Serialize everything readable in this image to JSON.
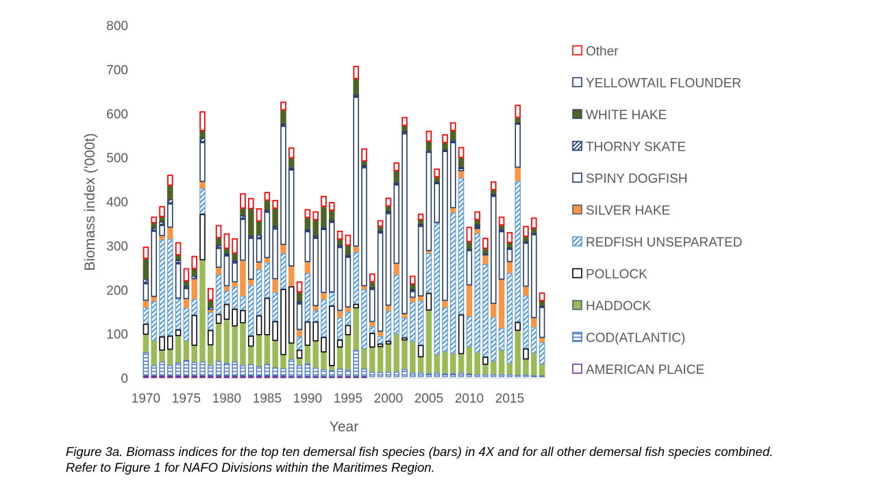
{
  "caption": "Figure 3a. Biomass indices for the top ten demersal fish species (bars) in 4X and for all other demersal fish species combined.  Refer to Figure 1 for NAFO Divisions within the Maritimes Region.",
  "chart_data": {
    "type": "bar",
    "stacked": true,
    "title": "",
    "xlabel": "Year",
    "ylabel": "Biomass index ('000t)",
    "ylim": [
      0,
      800
    ],
    "yticks": [
      0,
      100,
      200,
      300,
      400,
      500,
      600,
      700,
      800
    ],
    "xtick_labels": [
      "1970",
      "1975",
      "1980",
      "1985",
      "1990",
      "1995",
      "2000",
      "2005",
      "2010",
      "2015"
    ],
    "grid": false,
    "legend_position": "right",
    "legend_order": [
      "Other",
      "YELLOWTAIL FLOUNDER",
      "WHITE HAKE",
      "THORNY SKATE",
      "SPINY DOGFISH",
      "SILVER HAKE",
      "REDFISH UNSEPARATED",
      "POLLOCK",
      "HADDOCK",
      "COD(ATLANTIC)",
      "AMERICAN PLAICE"
    ],
    "categories": [
      "1970",
      "1971",
      "1972",
      "1973",
      "1974",
      "1975",
      "1976",
      "1977",
      "1978",
      "1979",
      "1980",
      "1981",
      "1982",
      "1983",
      "1984",
      "1985",
      "1986",
      "1987",
      "1988",
      "1989",
      "1990",
      "1991",
      "1992",
      "1993",
      "1994",
      "1995",
      "1996",
      "1997",
      "1998",
      "1999",
      "2000",
      "2001",
      "2002",
      "2003",
      "2004",
      "2005",
      "2006",
      "2007",
      "2008",
      "2009",
      "2010",
      "2011",
      "2012",
      "2013",
      "2014",
      "2015",
      "2016",
      "2017",
      "2018",
      "2019"
    ],
    "series": [
      {
        "name": "AMERICAN PLAICE",
        "color": "#7030a0",
        "pattern": "outline",
        "values": [
          5,
          5,
          5,
          5,
          5,
          5,
          5,
          5,
          4,
          4,
          4,
          4,
          4,
          4,
          4,
          4,
          4,
          4,
          3,
          3,
          3,
          3,
          3,
          3,
          3,
          3,
          3,
          3,
          2,
          2,
          2,
          2,
          2,
          2,
          2,
          2,
          2,
          2,
          2,
          2,
          2,
          2,
          2,
          2,
          2,
          2,
          2,
          2,
          2,
          2
        ]
      },
      {
        "name": "COD(ATLANTIC)",
        "color": "#4472c4",
        "pattern": "hlines",
        "values": [
          53,
          24,
          32,
          24,
          30,
          36,
          31,
          32,
          25,
          34,
          30,
          33,
          25,
          27,
          23,
          28,
          20,
          18,
          40,
          26,
          30,
          20,
          17,
          14,
          18,
          16,
          60,
          18,
          12,
          11,
          12,
          12,
          18,
          10,
          10,
          8,
          10,
          8,
          8,
          10,
          8,
          6,
          6,
          6,
          6,
          6,
          5,
          5,
          4,
          4
        ]
      },
      {
        "name": "HADDOCK",
        "color": "#9bbb59",
        "pattern": "solid",
        "values": [
          40,
          55,
          25,
          35,
          60,
          43,
          37,
          230,
          45,
          85,
          98,
          80,
          95,
          40,
          70,
          65,
          60,
          30,
          35,
          15,
          40,
          60,
          38,
          10,
          48,
          78,
          95,
          45,
          55,
          57,
          62,
          85,
          65,
          70,
          35,
          143,
          40,
          50,
          45,
          42,
          60,
          50,
          22,
          30,
          55,
          25,
          100,
          35,
          50,
          25
        ]
      },
      {
        "name": "POLLOCK",
        "color": "#000000",
        "pattern": "outline",
        "values": [
          25,
          0,
          32,
          32,
          15,
          0,
          70,
          105,
          35,
          22,
          36,
          40,
          30,
          25,
          45,
          85,
          45,
          150,
          130,
          20,
          55,
          45,
          35,
          137,
          18,
          23,
          10,
          0,
          33,
          8,
          8,
          0,
          7,
          0,
          28,
          40,
          0,
          0,
          0,
          90,
          0,
          0,
          18,
          0,
          0,
          0,
          20,
          25,
          0,
          0
        ]
      },
      {
        "name": "REDFISH UNSEPARATED",
        "color": "#5b9bd5",
        "pattern": "diag",
        "values": [
          37,
          90,
          220,
          220,
          70,
          75,
          36,
          58,
          40,
          90,
          30,
          50,
          32,
          115,
          105,
          80,
          65,
          80,
          0,
          30,
          110,
          25,
          85,
          30,
          50,
          30,
          118,
          135,
          15,
          17,
          68,
          135,
          45,
          90,
          100,
          90,
          300,
          100,
          320,
          310,
          70,
          270,
          210,
          100,
          50,
          205,
          320,
          120,
          60,
          50
        ]
      },
      {
        "name": "SILVER HAKE",
        "color": "#f79646",
        "pattern": "solid",
        "values": [
          15,
          10,
          8,
          25,
          0,
          20,
          45,
          15,
          5,
          15,
          10,
          10,
          80,
          12,
          15,
          10,
          30,
          20,
          45,
          15,
          25,
          10,
          15,
          0,
          15,
          10,
          12,
          7,
          10,
          10,
          12,
          25,
          8,
          10,
          10,
          5,
          0,
          15,
          10,
          15,
          70,
          10,
          20,
          30,
          110,
          25,
          30,
          20,
          20,
          10
        ]
      },
      {
        "name": "SPINY DOGFISH",
        "color": "#1f3864",
        "pattern": "outline",
        "values": [
          40,
          150,
          25,
          55,
          80,
          25,
          0,
          90,
          0,
          45,
          70,
          45,
          95,
          95,
          55,
          105,
          115,
          270,
          220,
          60,
          70,
          155,
          145,
          160,
          145,
          115,
          340,
          270,
          75,
          225,
          210,
          180,
          410,
          15,
          160,
          225,
          90,
          340,
          150,
          7,
          80,
          5,
          0,
          245,
          110,
          30,
          100,
          100,
          190,
          70
        ]
      },
      {
        "name": "THORNY SKATE",
        "color": "#2e4f8f",
        "pattern": "diag",
        "values": [
          10,
          7,
          8,
          10,
          8,
          5,
          8,
          10,
          7,
          7,
          5,
          5,
          8,
          5,
          8,
          5,
          5,
          5,
          5,
          5,
          5,
          5,
          5,
          5,
          5,
          5,
          5,
          5,
          5,
          5,
          5,
          5,
          5,
          5,
          5,
          3,
          3,
          3,
          5,
          3,
          3,
          5,
          5,
          5,
          5,
          3,
          3,
          3,
          3,
          3
        ]
      },
      {
        "name": "WHITE HAKE",
        "color": "#4f6228",
        "pattern": "solid",
        "values": [
          45,
          10,
          10,
          30,
          10,
          10,
          15,
          15,
          15,
          15,
          10,
          15,
          15,
          60,
          30,
          20,
          40,
          30,
          20,
          20,
          25,
          35,
          45,
          20,
          12,
          20,
          35,
          8,
          10,
          8,
          10,
          25,
          12,
          10,
          8,
          20,
          10,
          15,
          20,
          20,
          15,
          10,
          10,
          8,
          8,
          10,
          10,
          10,
          10,
          10
        ]
      },
      {
        "name": "YELLOWTAIL FLOUNDER",
        "color": "#203864",
        "pattern": "outline",
        "values": [
          0,
          0,
          0,
          0,
          0,
          0,
          0,
          0,
          0,
          0,
          0,
          0,
          0,
          0,
          0,
          0,
          0,
          0,
          0,
          0,
          0,
          0,
          0,
          0,
          0,
          0,
          0,
          0,
          0,
          0,
          0,
          0,
          0,
          0,
          0,
          0,
          0,
          0,
          0,
          0,
          0,
          0,
          0,
          0,
          0,
          0,
          0,
          0,
          0,
          0
        ]
      },
      {
        "name": "Other",
        "color": "#ff0000",
        "pattern": "outline",
        "values": [
          28,
          15,
          25,
          25,
          30,
          30,
          30,
          45,
          28,
          30,
          35,
          35,
          35,
          25,
          30,
          20,
          20,
          20,
          25,
          25,
          20,
          20,
          25,
          20,
          20,
          25,
          30,
          30,
          20,
          15,
          20,
          20,
          20,
          20,
          15,
          25,
          20,
          20,
          20,
          25,
          35,
          20,
          25,
          20,
          20,
          25,
          30,
          25,
          25,
          20
        ]
      }
    ]
  }
}
